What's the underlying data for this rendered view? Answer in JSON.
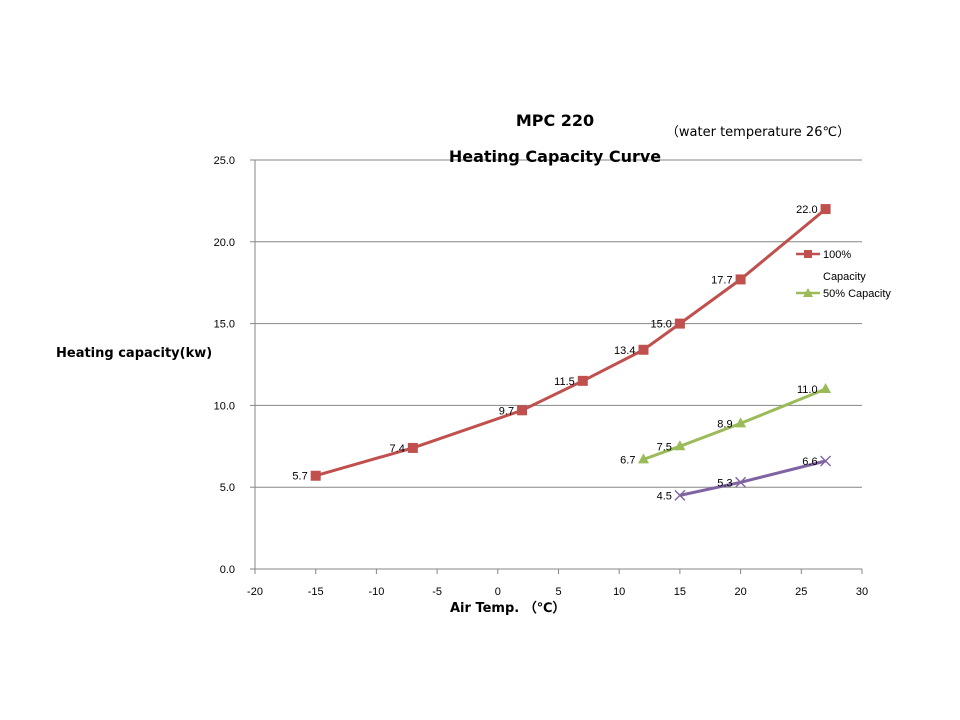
{
  "chart_data": {
    "type": "line",
    "title": "MPC 220",
    "subtitle": "Heating Capacity Curve",
    "note": "（water temperature 26℃）",
    "xlabel": "Air Temp. （℃）",
    "ylabel": "Heating capacity(kw)",
    "xlim": [
      -20,
      30
    ],
    "ylim": [
      0,
      25
    ],
    "x_ticks": [
      "-20",
      "-15",
      "-10",
      "-5",
      "0",
      "5",
      "10",
      "15",
      "20",
      "25",
      "30"
    ],
    "y_ticks": [
      "0.0",
      "5.0",
      "10.0",
      "15.0",
      "20.0",
      "25.0"
    ],
    "grid": "horizontal",
    "legend_position": "right",
    "series": [
      {
        "name": "100% Capacity",
        "legend_line1": "100%",
        "legend_line2": "Capacity",
        "color": "#c0504d",
        "marker": "square",
        "x": [
          -15,
          -7,
          2,
          7,
          12,
          15,
          20,
          27
        ],
        "y": [
          5.7,
          7.4,
          9.7,
          11.5,
          13.4,
          15.0,
          17.7,
          22.0
        ],
        "labels": [
          "5.7",
          "7.4",
          "9.7",
          "11.5",
          "13.4",
          "15.0",
          "17.7",
          "22.0"
        ]
      },
      {
        "name": "50% Capacity",
        "color": "#9bbb59",
        "marker": "triangle",
        "x": [
          12,
          15,
          20,
          27
        ],
        "y": [
          6.7,
          7.5,
          8.9,
          11.0
        ],
        "labels": [
          "6.7",
          "7.5",
          "8.9",
          "11.0"
        ]
      },
      {
        "name": "",
        "color": "#8064a2",
        "marker": "x",
        "x": [
          15,
          20,
          27
        ],
        "y": [
          4.5,
          5.3,
          6.6
        ],
        "labels": [
          "4.5",
          "5.3",
          "6.6"
        ]
      }
    ]
  }
}
